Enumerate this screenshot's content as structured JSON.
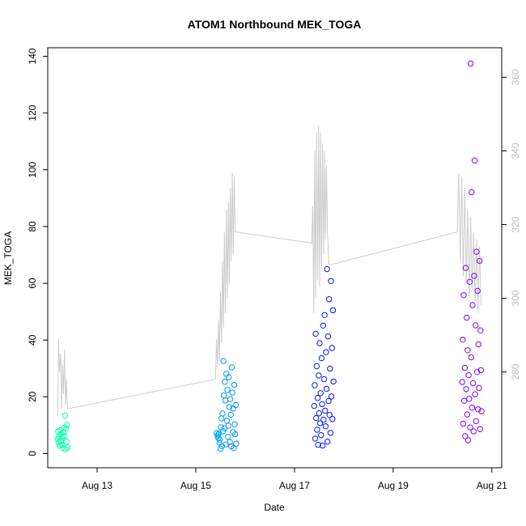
{
  "chart_data": {
    "type": "scatter",
    "title": "ATOM1 Northbound MEK_TOGA",
    "xlabel": "Date",
    "ylabel": "MEK_TOGA",
    "x_ticks": [
      "Aug 13",
      "Aug 15",
      "Aug 17",
      "Aug 19",
      "Aug 21"
    ],
    "x_tick_days": [
      13,
      15,
      17,
      19,
      21
    ],
    "xlim_days": [
      12.0,
      21.2
    ],
    "y_ticks": [
      0,
      20,
      40,
      60,
      80,
      100,
      120,
      140
    ],
    "ylim": [
      -5,
      143
    ],
    "y2_ticks": [
      280,
      300,
      320,
      340,
      360
    ],
    "y2lim": [
      254,
      368
    ],
    "grid": false,
    "legend": "none",
    "series_scatter": {
      "name": "",
      "color_gradient": [
        "#00ffaa",
        "#00bfff",
        "#0000ff",
        "#8a00ff"
      ],
      "points": [
        [
          12.2,
          5.2
        ],
        [
          12.21,
          7.8
        ],
        [
          12.22,
          3.9
        ],
        [
          12.23,
          6.1
        ],
        [
          12.24,
          2.8
        ],
        [
          12.25,
          8.2
        ],
        [
          12.26,
          4.5
        ],
        [
          12.27,
          6.9
        ],
        [
          12.28,
          3.1
        ],
        [
          12.29,
          5.8
        ],
        [
          12.31,
          1.9
        ],
        [
          12.32,
          7.4
        ],
        [
          12.33,
          9.1
        ],
        [
          12.34,
          6.2
        ],
        [
          12.35,
          13.3
        ],
        [
          12.36,
          1.5
        ],
        [
          12.37,
          8.8
        ],
        [
          12.38,
          4.2
        ],
        [
          12.39,
          10.1
        ],
        [
          12.4,
          2.2
        ],
        [
          15.42,
          7.2
        ],
        [
          15.44,
          6.1
        ],
        [
          15.46,
          5.4
        ],
        [
          15.48,
          3.8
        ],
        [
          15.5,
          1.7
        ],
        [
          15.52,
          12.4
        ],
        [
          15.54,
          14.1
        ],
        [
          15.55,
          7.8
        ],
        [
          15.56,
          32.6
        ],
        [
          15.57,
          20.5
        ],
        [
          15.58,
          8.9
        ],
        [
          15.59,
          25.3
        ],
        [
          15.6,
          18.7
        ],
        [
          15.61,
          3.2
        ],
        [
          15.62,
          28.1
        ],
        [
          15.63,
          11.6
        ],
        [
          15.64,
          22.4
        ],
        [
          15.65,
          5.9
        ],
        [
          15.66,
          9.8
        ],
        [
          15.67,
          26.9
        ],
        [
          15.68,
          16.4
        ],
        [
          15.69,
          4.1
        ],
        [
          15.7,
          19.2
        ],
        [
          15.71,
          13.7
        ],
        [
          15.72,
          2.5
        ],
        [
          15.73,
          30.4
        ],
        [
          15.74,
          21.5
        ],
        [
          15.75,
          7.6
        ],
        [
          15.76,
          15.9
        ],
        [
          15.77,
          1.9
        ],
        [
          15.78,
          24.2
        ],
        [
          15.79,
          10.3
        ],
        [
          15.8,
          6.8
        ],
        [
          15.81,
          17.1
        ],
        [
          15.45,
          6.7
        ],
        [
          15.47,
          7.1
        ],
        [
          15.49,
          4.9
        ],
        [
          15.51,
          9.3
        ],
        [
          15.53,
          2.6
        ],
        [
          15.82,
          3.5
        ],
        [
          17.4,
          16.8
        ],
        [
          17.41,
          24.1
        ],
        [
          17.42,
          5.3
        ],
        [
          17.43,
          42.2
        ],
        [
          17.44,
          12.5
        ],
        [
          17.45,
          30.8
        ],
        [
          17.46,
          8.4
        ],
        [
          17.47,
          19.6
        ],
        [
          17.48,
          3.1
        ],
        [
          17.49,
          27.5
        ],
        [
          17.5,
          14.2
        ],
        [
          17.51,
          38.9
        ],
        [
          17.52,
          10.7
        ],
        [
          17.53,
          21.3
        ],
        [
          17.54,
          6.5
        ],
        [
          17.55,
          33.6
        ],
        [
          17.56,
          17.4
        ],
        [
          17.57,
          2.8
        ],
        [
          17.58,
          45.1
        ],
        [
          17.59,
          11.9
        ],
        [
          17.6,
          26.2
        ],
        [
          17.61,
          48.8
        ],
        [
          17.62,
          15.1
        ],
        [
          17.63,
          9.6
        ],
        [
          17.64,
          35.7
        ],
        [
          17.65,
          22.8
        ],
        [
          17.66,
          65.0
        ],
        [
          17.67,
          4.2
        ],
        [
          17.68,
          41.3
        ],
        [
          17.69,
          18.5
        ],
        [
          17.7,
          54.4
        ],
        [
          17.71,
          13.6
        ],
        [
          17.72,
          29.9
        ],
        [
          17.73,
          7.3
        ],
        [
          17.74,
          60.8
        ],
        [
          17.75,
          20.1
        ],
        [
          17.76,
          37.2
        ],
        [
          17.77,
          12.2
        ],
        [
          17.78,
          50.5
        ],
        [
          17.79,
          25.4
        ],
        [
          20.4,
          25.2
        ],
        [
          20.41,
          40.1
        ],
        [
          20.42,
          10.5
        ],
        [
          20.43,
          55.8
        ],
        [
          20.44,
          18.6
        ],
        [
          20.45,
          30.2
        ],
        [
          20.46,
          6.1
        ],
        [
          20.47,
          65.4
        ],
        [
          20.48,
          22.7
        ],
        [
          20.49,
          47.9
        ],
        [
          20.5,
          13.8
        ],
        [
          20.51,
          36.4
        ],
        [
          20.52,
          4.7
        ],
        [
          20.53,
          27.6
        ],
        [
          20.54,
          19.3
        ],
        [
          20.55,
          60.5
        ],
        [
          20.56,
          9.2
        ],
        [
          20.57,
          137.4
        ],
        [
          20.58,
          33.9
        ],
        [
          20.59,
          92.1
        ],
        [
          20.6,
          16.2
        ],
        [
          20.61,
          52.3
        ],
        [
          20.62,
          24.8
        ],
        [
          20.63,
          7.8
        ],
        [
          20.64,
          62.6
        ],
        [
          20.65,
          103.3
        ],
        [
          20.66,
          20.9
        ],
        [
          20.67,
          45.2
        ],
        [
          20.68,
          11.4
        ],
        [
          20.69,
          71.1
        ],
        [
          20.7,
          28.7
        ],
        [
          20.71,
          57.3
        ],
        [
          20.72,
          15.6
        ],
        [
          20.73,
          38.5
        ],
        [
          20.74,
          23.1
        ],
        [
          20.75,
          67.9
        ],
        [
          20.76,
          8.6
        ],
        [
          20.77,
          43.4
        ],
        [
          20.78,
          29.4
        ],
        [
          20.79,
          14.9
        ]
      ]
    },
    "series_line": {
      "name": "",
      "color": "#cccccc",
      "axis": "right",
      "points": [
        [
          12.2,
          268
        ],
        [
          12.22,
          289
        ],
        [
          12.24,
          280
        ],
        [
          12.26,
          285
        ],
        [
          12.28,
          270
        ],
        [
          12.3,
          282
        ],
        [
          12.32,
          274
        ],
        [
          12.34,
          286
        ],
        [
          12.36,
          271
        ],
        [
          12.38,
          278
        ],
        [
          12.4,
          270
        ],
        [
          15.4,
          278
        ],
        [
          15.42,
          289
        ],
        [
          15.44,
          281
        ],
        [
          15.46,
          294
        ],
        [
          15.48,
          283
        ],
        [
          15.5,
          302
        ],
        [
          15.52,
          288
        ],
        [
          15.54,
          310
        ],
        [
          15.56,
          292
        ],
        [
          15.58,
          318
        ],
        [
          15.6,
          296
        ],
        [
          15.62,
          324
        ],
        [
          15.64,
          300
        ],
        [
          15.66,
          326
        ],
        [
          15.68,
          304
        ],
        [
          15.7,
          330
        ],
        [
          15.72,
          310
        ],
        [
          15.74,
          334
        ],
        [
          15.76,
          312
        ],
        [
          15.78,
          333
        ],
        [
          15.8,
          318
        ],
        [
          17.35,
          315
        ],
        [
          17.37,
          325
        ],
        [
          17.39,
          296
        ],
        [
          17.41,
          340
        ],
        [
          17.43,
          300
        ],
        [
          17.45,
          345
        ],
        [
          17.47,
          305
        ],
        [
          17.49,
          347
        ],
        [
          17.51,
          303
        ],
        [
          17.53,
          345
        ],
        [
          17.55,
          308
        ],
        [
          17.57,
          342
        ],
        [
          17.59,
          312
        ],
        [
          17.61,
          340
        ],
        [
          17.63,
          316
        ],
        [
          17.65,
          336
        ],
        [
          17.67,
          318
        ],
        [
          17.7,
          309
        ],
        [
          20.3,
          318
        ],
        [
          20.33,
          334
        ],
        [
          20.36,
          310
        ],
        [
          20.39,
          333
        ],
        [
          20.42,
          306
        ],
        [
          20.45,
          330
        ],
        [
          20.48,
          304
        ],
        [
          20.51,
          324
        ],
        [
          20.54,
          300
        ],
        [
          20.57,
          322
        ],
        [
          20.6,
          302
        ],
        [
          20.63,
          318
        ],
        [
          20.66,
          299
        ],
        [
          20.69,
          316
        ],
        [
          20.72,
          296
        ],
        [
          20.75,
          314
        ],
        [
          20.78,
          298
        ]
      ]
    }
  }
}
